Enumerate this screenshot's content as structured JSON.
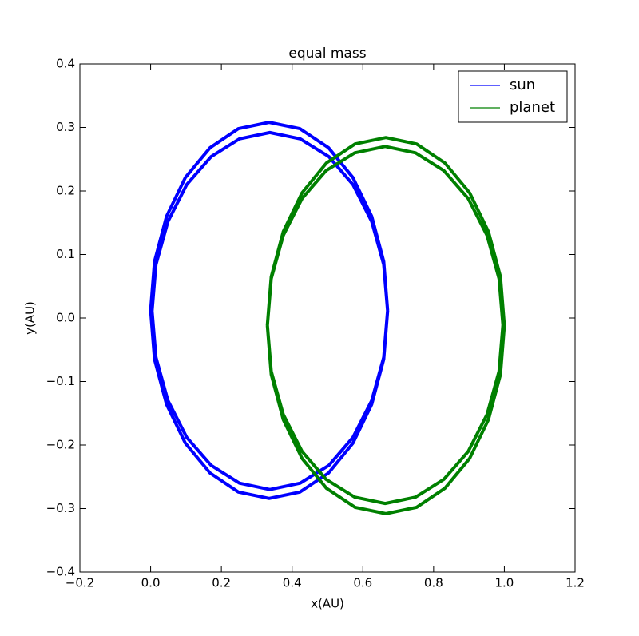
{
  "chart_data": {
    "type": "line",
    "title": "equal mass",
    "xlabel": "x(AU)",
    "ylabel": "y(AU)",
    "xlim": [
      -0.2,
      1.2
    ],
    "ylim": [
      -0.4,
      0.4
    ],
    "xticks": [
      {
        "value": -0.2,
        "label": "−0.2"
      },
      {
        "value": 0,
        "label": "0.0"
      },
      0.2,
      0.4,
      0.6,
      0.8,
      {
        "value": 1,
        "label": "1.0"
      },
      1.2
    ],
    "yticks": [
      {
        "value": -0.4,
        "label": "−0.4"
      },
      {
        "value": -0.3,
        "label": "−0.3"
      },
      {
        "value": -0.2,
        "label": "−0.2"
      },
      {
        "value": -0.1,
        "label": "−0.1"
      },
      {
        "value": 0,
        "label": "0.0"
      },
      0.1,
      0.2,
      0.3,
      0.4
    ],
    "legend": "upper right",
    "grid": false,
    "series": [
      {
        "name": "sun",
        "color": "#0000ff",
        "x": [
          0.67,
          0.659,
          0.625,
          0.572,
          0.503,
          0.422,
          0.335,
          0.248,
          0.168,
          0.098,
          0.045,
          0.011,
          0,
          0.011,
          0.045,
          0.098,
          0.168,
          0.248,
          0.335,
          0.422,
          0.503,
          0.572,
          0.625,
          0.659,
          0.67,
          0.659,
          0.625,
          0.572,
          0.504,
          0.423,
          0.337,
          0.251,
          0.171,
          0.102,
          0.049,
          0.015,
          0.004,
          0.015,
          0.049,
          0.102,
          0.171,
          0.251,
          0.337,
          0.423,
          0.504,
          0.572,
          0.625,
          0.659,
          0.67
        ],
        "y": [
          0.012,
          0.089,
          0.16,
          0.221,
          0.268,
          0.298,
          0.308,
          0.298,
          0.268,
          0.221,
          0.16,
          0.089,
          0.012,
          -0.065,
          -0.136,
          -0.197,
          -0.244,
          -0.274,
          -0.284,
          -0.274,
          -0.244,
          -0.197,
          -0.136,
          -0.065,
          0.011,
          0.084,
          0.152,
          0.21,
          0.254,
          0.282,
          0.292,
          0.282,
          0.254,
          0.21,
          0.152,
          0.084,
          0.011,
          -0.062,
          -0.13,
          -0.188,
          -0.232,
          -0.26,
          -0.27,
          -0.26,
          -0.232,
          -0.188,
          -0.13,
          -0.062,
          0.012
        ]
      },
      {
        "name": "planet",
        "color": "#008000",
        "x": [
          0.33,
          0.341,
          0.375,
          0.428,
          0.497,
          0.578,
          0.665,
          0.752,
          0.832,
          0.902,
          0.955,
          0.989,
          1.0,
          0.989,
          0.955,
          0.902,
          0.832,
          0.752,
          0.665,
          0.578,
          0.497,
          0.428,
          0.375,
          0.341,
          0.33,
          0.341,
          0.375,
          0.428,
          0.496,
          0.577,
          0.663,
          0.749,
          0.829,
          0.898,
          0.951,
          0.985,
          0.996,
          0.985,
          0.951,
          0.898,
          0.829,
          0.749,
          0.663,
          0.577,
          0.496,
          0.428,
          0.375,
          0.341,
          0.33
        ],
        "y": [
          -0.012,
          -0.089,
          -0.16,
          -0.221,
          -0.268,
          -0.298,
          -0.308,
          -0.298,
          -0.268,
          -0.221,
          -0.16,
          -0.089,
          -0.012,
          0.065,
          0.136,
          0.197,
          0.244,
          0.274,
          0.284,
          0.274,
          0.244,
          0.197,
          0.136,
          0.065,
          -0.011,
          -0.084,
          -0.152,
          -0.21,
          -0.254,
          -0.282,
          -0.292,
          -0.282,
          -0.254,
          -0.21,
          -0.152,
          -0.084,
          -0.011,
          0.062,
          0.13,
          0.188,
          0.232,
          0.26,
          0.27,
          0.26,
          0.232,
          0.188,
          0.13,
          0.062,
          -0.012
        ]
      }
    ]
  }
}
